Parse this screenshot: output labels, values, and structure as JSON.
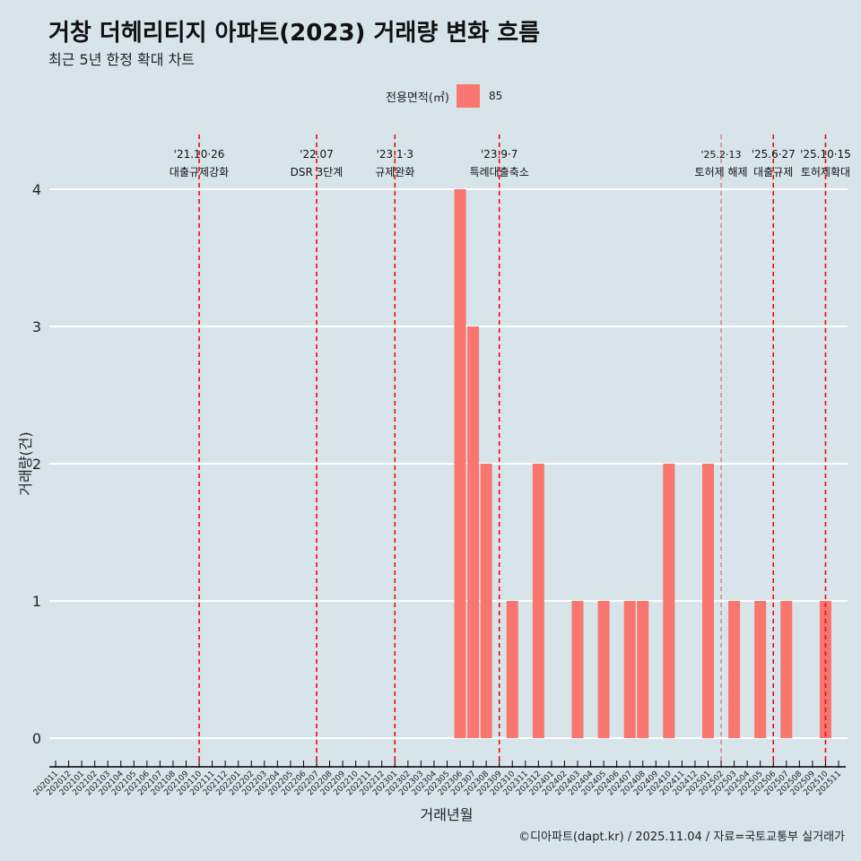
{
  "title": "거창 더헤리티지 아파트(2023) 거래량 변화 흐름",
  "subtitle": "최근 5년 한정 확대 차트",
  "caption": "©디아파트(dapt.kr) / 2025.11.04 / 자료=국토교통부 실거래가",
  "chart_data": {
    "type": "bar",
    "title": "거창 더헤리티지 아파트(2023) 거래량 변화 흐름",
    "xlabel": "거래년월",
    "ylabel": "거래량(건)",
    "ylim": [
      0,
      4
    ],
    "yticks": [
      0,
      1,
      2,
      3,
      4
    ],
    "legend": {
      "title": "전용면적(㎡)",
      "entries": [
        {
          "label": "85",
          "color": "#f8766d"
        }
      ],
      "placement": "top"
    },
    "categories": [
      "202011",
      "202012",
      "202101",
      "202102",
      "202103",
      "202104",
      "202105",
      "202106",
      "202107",
      "202108",
      "202109",
      "202110",
      "202111",
      "202112",
      "202201",
      "202202",
      "202203",
      "202204",
      "202205",
      "202206",
      "202207",
      "202208",
      "202209",
      "202210",
      "202211",
      "202212",
      "202301",
      "202302",
      "202303",
      "202304",
      "202305",
      "202306",
      "202307",
      "202308",
      "202309",
      "202310",
      "202311",
      "202312",
      "202401",
      "202402",
      "202403",
      "202404",
      "202405",
      "202406",
      "202407",
      "202408",
      "202409",
      "202410",
      "202411",
      "202412",
      "202501",
      "202502",
      "202503",
      "202504",
      "202505",
      "202506",
      "202507",
      "202508",
      "202509",
      "202510",
      "202511"
    ],
    "series": [
      {
        "name": "85",
        "color": "#f8766d",
        "values": {
          "202306": 4,
          "202307": 3,
          "202308": 2,
          "202310": 1,
          "202312": 2,
          "202403": 1,
          "202405": 1,
          "202407": 1,
          "202408": 1,
          "202410": 2,
          "202501": 2,
          "202503": 1,
          "202505": 1,
          "202507": 1,
          "202510": 1
        }
      }
    ],
    "annotations": [
      {
        "month": "202110",
        "date": "'21.10·26",
        "text": "대출규제강화"
      },
      {
        "month": "202207",
        "date": "'22.07",
        "text": "DSR 3단계"
      },
      {
        "month": "202301",
        "date": "'23.1·3",
        "text": "규제완화"
      },
      {
        "month": "202309",
        "date": "'23.9·7",
        "text": "특례대출축소"
      },
      {
        "month": "202502",
        "date": "'25.2·13",
        "text": "토허제 해제"
      },
      {
        "month": "202506",
        "date": "'25.6·27",
        "text": "대출규제"
      },
      {
        "month": "202510",
        "date": "'25.10·15",
        "text": "토허제확대"
      }
    ]
  }
}
